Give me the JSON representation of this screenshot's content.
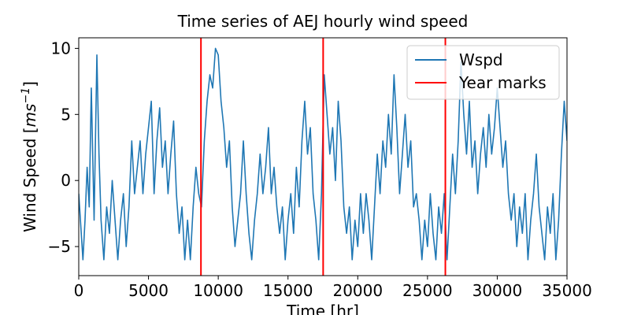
{
  "chart_data": {
    "type": "line",
    "title": "Time series of AEJ hourly wind speed",
    "xlabel": "Time [hr]",
    "ylabel_main": "Wind Speed [",
    "ylabel_unit": "ms",
    "ylabel_exp": "−1",
    "ylabel_close": "]",
    "xlim": [
      0,
      35000
    ],
    "ylim": [
      -7.2,
      10.8
    ],
    "xticks": [
      0,
      5000,
      10000,
      15000,
      20000,
      25000,
      30000,
      35000
    ],
    "xtick_labels": [
      "0",
      "5000",
      "10000",
      "15000",
      "20000",
      "25000",
      "30000",
      "35000"
    ],
    "yticks": [
      -5,
      0,
      5,
      10
    ],
    "ytick_labels": [
      "−5",
      "0",
      "5",
      "10"
    ],
    "grid": false,
    "legend_position": "top-right",
    "year_marks": [
      8760,
      17520,
      26280
    ],
    "series": [
      {
        "name": "Wspd",
        "color": "#1f77b4",
        "points": [
          [
            0,
            -1
          ],
          [
            150,
            -3.5
          ],
          [
            300,
            -6
          ],
          [
            450,
            -3
          ],
          [
            600,
            1
          ],
          [
            750,
            -2
          ],
          [
            900,
            7
          ],
          [
            1000,
            2
          ],
          [
            1100,
            -3
          ],
          [
            1300,
            9.5
          ],
          [
            1450,
            2
          ],
          [
            1600,
            -3
          ],
          [
            1800,
            -6
          ],
          [
            2000,
            -2
          ],
          [
            2200,
            -4
          ],
          [
            2400,
            0
          ],
          [
            2600,
            -3
          ],
          [
            2800,
            -6
          ],
          [
            3000,
            -3
          ],
          [
            3200,
            -1
          ],
          [
            3400,
            -5
          ],
          [
            3600,
            -2
          ],
          [
            3800,
            3
          ],
          [
            4000,
            -1
          ],
          [
            4200,
            1
          ],
          [
            4400,
            3
          ],
          [
            4600,
            -1
          ],
          [
            4800,
            2
          ],
          [
            5000,
            4
          ],
          [
            5200,
            6
          ],
          [
            5400,
            -1
          ],
          [
            5600,
            3
          ],
          [
            5800,
            5.5
          ],
          [
            6000,
            1
          ],
          [
            6200,
            3
          ],
          [
            6400,
            -1
          ],
          [
            6600,
            2
          ],
          [
            6800,
            4.5
          ],
          [
            7000,
            -1
          ],
          [
            7200,
            -4
          ],
          [
            7400,
            -2
          ],
          [
            7600,
            -6
          ],
          [
            7800,
            -3
          ],
          [
            8000,
            -6
          ],
          [
            8200,
            -2
          ],
          [
            8400,
            1
          ],
          [
            8600,
            -1
          ],
          [
            8800,
            -2
          ],
          [
            9000,
            3
          ],
          [
            9200,
            6
          ],
          [
            9400,
            8
          ],
          [
            9600,
            7
          ],
          [
            9800,
            10
          ],
          [
            10000,
            9.5
          ],
          [
            10200,
            6
          ],
          [
            10400,
            4
          ],
          [
            10600,
            1
          ],
          [
            10800,
            3
          ],
          [
            11000,
            -2
          ],
          [
            11200,
            -5
          ],
          [
            11400,
            -3
          ],
          [
            11600,
            -1
          ],
          [
            11800,
            3
          ],
          [
            12000,
            -1
          ],
          [
            12200,
            -4
          ],
          [
            12400,
            -6
          ],
          [
            12600,
            -3
          ],
          [
            12800,
            -1
          ],
          [
            13000,
            2
          ],
          [
            13200,
            -1
          ],
          [
            13400,
            1
          ],
          [
            13600,
            4
          ],
          [
            13800,
            -1
          ],
          [
            14000,
            1
          ],
          [
            14200,
            -2
          ],
          [
            14400,
            -4
          ],
          [
            14600,
            -2
          ],
          [
            14800,
            -6
          ],
          [
            15000,
            -3
          ],
          [
            15200,
            -1
          ],
          [
            15400,
            -4
          ],
          [
            15600,
            1
          ],
          [
            15800,
            -2
          ],
          [
            16000,
            3
          ],
          [
            16200,
            6
          ],
          [
            16400,
            2
          ],
          [
            16600,
            4
          ],
          [
            16800,
            -1
          ],
          [
            17000,
            -3
          ],
          [
            17200,
            -6
          ],
          [
            17400,
            -1
          ],
          [
            17600,
            8
          ],
          [
            17800,
            5
          ],
          [
            18000,
            2
          ],
          [
            18200,
            4
          ],
          [
            18400,
            0
          ],
          [
            18600,
            6
          ],
          [
            18800,
            3
          ],
          [
            19000,
            -2
          ],
          [
            19200,
            -4
          ],
          [
            19400,
            -2
          ],
          [
            19600,
            -6
          ],
          [
            19800,
            -3
          ],
          [
            20000,
            -5
          ],
          [
            20200,
            -1
          ],
          [
            20400,
            -4
          ],
          [
            20600,
            -1
          ],
          [
            20800,
            -3
          ],
          [
            21000,
            -6
          ],
          [
            21200,
            -2
          ],
          [
            21400,
            2
          ],
          [
            21600,
            -1
          ],
          [
            21800,
            3
          ],
          [
            22000,
            1
          ],
          [
            22200,
            5
          ],
          [
            22400,
            2
          ],
          [
            22600,
            8
          ],
          [
            22800,
            4
          ],
          [
            23000,
            -1
          ],
          [
            23200,
            2
          ],
          [
            23400,
            5
          ],
          [
            23600,
            1
          ],
          [
            23800,
            3
          ],
          [
            24000,
            -2
          ],
          [
            24200,
            -1
          ],
          [
            24400,
            -3
          ],
          [
            24600,
            -6
          ],
          [
            24800,
            -3
          ],
          [
            25000,
            -5
          ],
          [
            25200,
            -1
          ],
          [
            25400,
            -4
          ],
          [
            25600,
            -6
          ],
          [
            25800,
            -2
          ],
          [
            26000,
            -4
          ],
          [
            26200,
            -1
          ],
          [
            26400,
            -6
          ],
          [
            26600,
            -2
          ],
          [
            26800,
            2
          ],
          [
            27000,
            -1
          ],
          [
            27200,
            3
          ],
          [
            27400,
            9
          ],
          [
            27600,
            5
          ],
          [
            27800,
            2
          ],
          [
            28000,
            6
          ],
          [
            28200,
            1
          ],
          [
            28400,
            3
          ],
          [
            28600,
            -1
          ],
          [
            28800,
            2
          ],
          [
            29000,
            4
          ],
          [
            29200,
            1
          ],
          [
            29400,
            5
          ],
          [
            29600,
            2
          ],
          [
            29800,
            4
          ],
          [
            30000,
            7
          ],
          [
            30200,
            4
          ],
          [
            30400,
            1
          ],
          [
            30600,
            3
          ],
          [
            30800,
            -1
          ],
          [
            31000,
            -3
          ],
          [
            31200,
            -1
          ],
          [
            31400,
            -5
          ],
          [
            31600,
            -2
          ],
          [
            31800,
            -4
          ],
          [
            32000,
            -1
          ],
          [
            32200,
            -6
          ],
          [
            32400,
            -3
          ],
          [
            32600,
            -1
          ],
          [
            32800,
            2
          ],
          [
            33000,
            -2
          ],
          [
            33200,
            -4
          ],
          [
            33400,
            -6
          ],
          [
            33600,
            -2
          ],
          [
            33800,
            -4
          ],
          [
            34000,
            -1
          ],
          [
            34200,
            -6
          ],
          [
            34400,
            -3
          ],
          [
            34600,
            2
          ],
          [
            34800,
            6
          ],
          [
            35000,
            3
          ]
        ]
      },
      {
        "name": "Year marks",
        "color": "#ff0000"
      }
    ]
  }
}
